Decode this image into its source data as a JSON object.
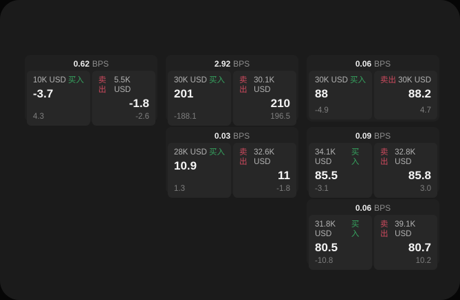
{
  "theme": {
    "page_bg": "#060606",
    "panel_bg": "#1b1b1b",
    "card_bg": "#202020",
    "pane_bg": "#272727",
    "buy_color": "#36a35f",
    "sell_color": "#cc4a5e"
  },
  "labels": {
    "buy": "买入",
    "sell": "卖出",
    "bps_unit": "BPS"
  },
  "cards": [
    {
      "bps": "0.62",
      "buy": {
        "amount": "10K USD",
        "value": "-3.7",
        "delta": "4.3"
      },
      "sell": {
        "amount": "5.5K USD",
        "value": "-1.8",
        "delta": "-2.6"
      }
    },
    {
      "bps": "2.92",
      "buy": {
        "amount": "30K USD",
        "value": "201",
        "delta": "-188.1"
      },
      "sell": {
        "amount": "30.1K USD",
        "value": "210",
        "delta": "196.5"
      }
    },
    {
      "bps": "0.03",
      "buy": {
        "amount": "28K USD",
        "value": "10.9",
        "delta": "1.3"
      },
      "sell": {
        "amount": "32.6K USD",
        "value": "11",
        "delta": "-1.8"
      }
    },
    {
      "bps": "0.06",
      "buy": {
        "amount": "30K USD",
        "value": "88",
        "delta": "-4.9"
      },
      "sell": {
        "amount": "30K USD",
        "value": "88.2",
        "delta": "4.7"
      }
    },
    {
      "bps": "0.09",
      "buy": {
        "amount": "34.1K USD",
        "value": "85.5",
        "delta": "-3.1"
      },
      "sell": {
        "amount": "32.8K USD",
        "value": "85.8",
        "delta": "3.0"
      }
    },
    {
      "bps": "0.06",
      "buy": {
        "amount": "31.8K USD",
        "value": "80.5",
        "delta": "-10.8"
      },
      "sell": {
        "amount": "39.1K USD",
        "value": "80.7",
        "delta": "10.2"
      }
    }
  ]
}
